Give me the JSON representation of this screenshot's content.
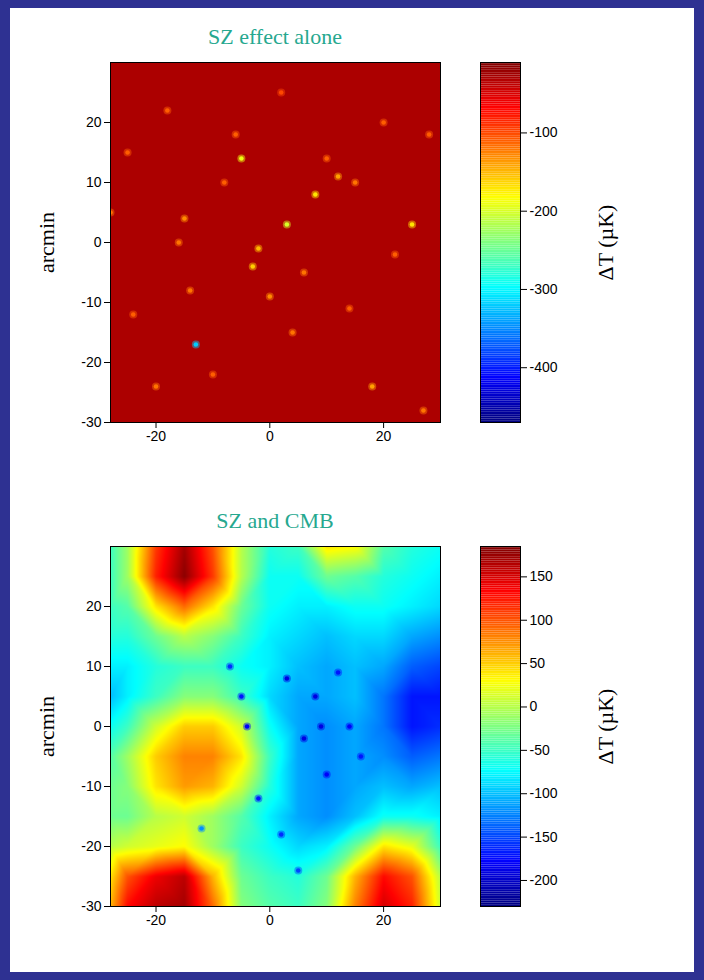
{
  "chart_data": [
    {
      "type": "heatmap",
      "title": "SZ effect alone",
      "ylabel": "arcmin",
      "xlim": [
        -28,
        30
      ],
      "ylim": [
        -30,
        30
      ],
      "xticks": [
        -20,
        0,
        20
      ],
      "yticks": [
        -30,
        -20,
        -10,
        0,
        10,
        20
      ],
      "background": -30,
      "sources": {
        "x": [
          -13,
          -5,
          8,
          3,
          25,
          -2,
          -3,
          -15,
          -16,
          12,
          10,
          15,
          -8,
          0,
          4,
          -10,
          -20,
          18,
          27,
          22,
          6,
          20,
          -25,
          -28,
          -18,
          2,
          -6,
          14,
          -14,
          28,
          -24
        ],
        "y": [
          -17,
          14,
          8,
          3,
          3,
          -1,
          -4,
          4,
          0,
          11,
          14,
          10,
          10,
          -9,
          -15,
          -22,
          -24,
          -24,
          -28,
          -2,
          -5,
          20,
          15,
          5,
          22,
          25,
          18,
          -11,
          -8,
          18,
          -12
        ],
        "values": [
          -320,
          -190,
          -170,
          -200,
          -170,
          -150,
          -160,
          -130,
          -120,
          -140,
          -110,
          -120,
          -110,
          -130,
          -120,
          -110,
          -120,
          -140,
          -120,
          -110,
          -120,
          -110,
          -110,
          -120,
          -110,
          -100,
          -110,
          -110,
          -120,
          -110,
          -110
        ]
      },
      "colorbar": {
        "label": "ΔT (µK)",
        "range": [
          -470,
          -10
        ],
        "ticks": [
          -100,
          -200,
          -300,
          -400
        ]
      }
    },
    {
      "type": "heatmap",
      "title": "SZ and CMB",
      "ylabel": "arcmin",
      "xlim": [
        -28,
        30
      ],
      "ylim": [
        -30,
        30
      ],
      "xticks": [
        -20,
        0,
        20
      ],
      "yticks": [
        -30,
        -20,
        -10,
        0,
        10,
        20
      ],
      "x": [
        -28,
        -25,
        -20,
        -15,
        -10,
        -5,
        0,
        5,
        10,
        15,
        20,
        25,
        30
      ],
      "y": [
        30,
        25,
        20,
        15,
        10,
        5,
        0,
        -5,
        -10,
        -15,
        -20,
        -25,
        -30
      ],
      "cells": [
        [
          -50,
          -10,
          110,
          170,
          100,
          0,
          -60,
          -50,
          40,
          30,
          -40,
          -60,
          -70
        ],
        [
          -50,
          -10,
          120,
          180,
          110,
          0,
          -70,
          -70,
          -30,
          -40,
          -60,
          -70,
          -80
        ],
        [
          -50,
          -40,
          40,
          90,
          40,
          -30,
          -70,
          -80,
          -80,
          -70,
          -70,
          -80,
          -90
        ],
        [
          -60,
          -60,
          -30,
          0,
          -20,
          -50,
          -80,
          -90,
          -100,
          -90,
          -90,
          -110,
          -120
        ],
        [
          -80,
          -80,
          -60,
          -50,
          -50,
          -70,
          -80,
          -100,
          -110,
          -100,
          -110,
          -140,
          -150
        ],
        [
          -100,
          -80,
          -50,
          -20,
          -20,
          -50,
          -90,
          -110,
          -110,
          -100,
          -130,
          -170,
          -170
        ],
        [
          -70,
          -50,
          10,
          50,
          50,
          10,
          -70,
          -110,
          -120,
          -110,
          -130,
          -170,
          -160
        ],
        [
          -40,
          -10,
          50,
          80,
          80,
          40,
          -50,
          -110,
          -120,
          -110,
          -120,
          -140,
          -130
        ],
        [
          -30,
          -20,
          40,
          70,
          60,
          10,
          -60,
          -110,
          -120,
          -110,
          -100,
          -110,
          -100
        ],
        [
          -30,
          -30,
          0,
          10,
          -10,
          -40,
          -80,
          -110,
          -120,
          -100,
          -70,
          -70,
          -80
        ],
        [
          0,
          10,
          20,
          30,
          -10,
          -50,
          -70,
          -90,
          -80,
          -30,
          40,
          20,
          -50
        ],
        [
          40,
          100,
          140,
          160,
          60,
          -30,
          -50,
          -60,
          -30,
          60,
          130,
          100,
          0
        ],
        [
          60,
          130,
          160,
          170,
          90,
          -20,
          -40,
          -50,
          -20,
          80,
          150,
          120,
          10
        ]
      ],
      "sources": {
        "x": [
          3,
          8,
          -4,
          6,
          -5,
          9,
          10,
          12,
          14,
          2,
          -7,
          -12,
          16,
          -2,
          5
        ],
        "y": [
          8,
          5,
          0,
          -2,
          5,
          0,
          -8,
          9,
          0,
          -18,
          10,
          -17,
          -5,
          -12,
          -24
        ],
        "values": [
          -190,
          -190,
          -180,
          -190,
          -170,
          -190,
          -180,
          -170,
          -180,
          -160,
          -160,
          -120,
          -170,
          -170,
          -150
        ]
      },
      "colorbar": {
        "label": "ΔT (µK)",
        "range": [
          -230,
          185
        ],
        "ticks": [
          150,
          100,
          50,
          0,
          -50,
          -100,
          -150,
          -200
        ]
      }
    }
  ]
}
